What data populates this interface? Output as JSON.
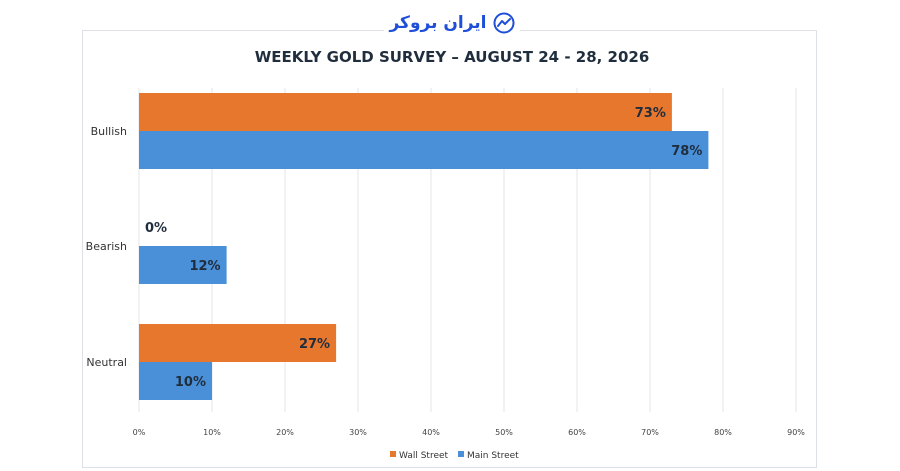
{
  "brand": {
    "name": "ایران بروکر"
  },
  "chart_data": {
    "type": "bar",
    "orientation": "horizontal",
    "title": "WEEKLY GOLD SURVEY – AUGUST 24 - 28, 2026",
    "categories": [
      "Bullish",
      "Bearish",
      "Neutral"
    ],
    "series": [
      {
        "name": "Wall Street",
        "color": "#e8772e",
        "values": [
          73,
          0,
          27
        ],
        "labels": [
          "73%",
          "0%",
          "27%"
        ]
      },
      {
        "name": "Main Street",
        "color": "#4a90d9",
        "values": [
          78,
          12,
          10
        ],
        "labels": [
          "78%",
          "12%",
          "10%"
        ]
      }
    ],
    "xlim": [
      0,
      90
    ],
    "xticks": [
      0,
      10,
      20,
      30,
      40,
      50,
      60,
      70,
      80,
      90
    ],
    "xtick_labels": [
      "0%",
      "10%",
      "20%",
      "30%",
      "40%",
      "50%",
      "60%",
      "70%",
      "80%",
      "90%"
    ],
    "grid": "vertical",
    "legend": "bottom-center"
  }
}
